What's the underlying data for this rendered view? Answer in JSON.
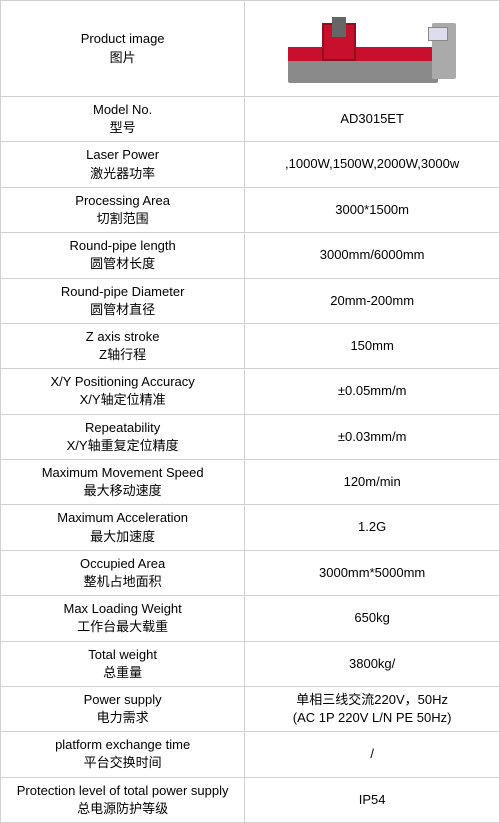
{
  "table": {
    "header": {
      "label_en": "Product image",
      "label_cn": "图片"
    },
    "rows": [
      {
        "label_en": "Model No.",
        "label_cn": "型号",
        "value": "AD3015ET"
      },
      {
        "label_en": "Laser Power",
        "label_cn": "激光器功率",
        "value": ",1000W,1500W,2000W,3000w"
      },
      {
        "label_en": "Processing Area",
        "label_cn": "切割范围",
        "value": "3000*1500m"
      },
      {
        "label_en": "Round-pipe length",
        "label_cn": "圆管材长度",
        "value": "3000mm/6000mm"
      },
      {
        "label_en": "Round-pipe Diameter",
        "label_cn": "圆管材直径",
        "value": "20mm-200mm"
      },
      {
        "label_en": "Z axis stroke",
        "label_cn": "Z轴行程",
        "value": "150mm"
      },
      {
        "label_en": "X/Y Positioning Accuracy",
        "label_cn": "X/Y轴定位精准",
        "value": "±0.05mm/m"
      },
      {
        "label_en": "Repeatability",
        "label_cn": "X/Y轴重复定位精度",
        "value": "±0.03mm/m"
      },
      {
        "label_en": "Maximum Movement Speed",
        "label_cn": "最大移动速度",
        "value": "120m/min"
      },
      {
        "label_en": "Maximum Acceleration",
        "label_cn": "最大加速度",
        "value": "1.2G"
      },
      {
        "label_en": "Occupied Area",
        "label_cn": "整机占地面积",
        "value": "3000mm*5000mm"
      },
      {
        "label_en": "Max Loading Weight",
        "label_cn": "工作台最大载重",
        "value": "650kg"
      },
      {
        "label_en": "Total weight",
        "label_cn": "总重量",
        "value": "3800kg/"
      },
      {
        "label_en": "Power supply",
        "label_cn": "电力需求",
        "value": "单相三线交流220V，50Hz\n(AC 1P 220V L/N PE 50Hz)"
      },
      {
        "label_en": "platform exchange  time",
        "label_cn": "平台交换时间",
        "value": "/"
      },
      {
        "label_en": "Protection level of total power supply",
        "label_cn": "总电源防护等级",
        "value": "IP54"
      }
    ]
  },
  "colors": {
    "border": "#d0d0d0",
    "text": "#000000",
    "machine_red": "#c8102e",
    "machine_gray": "#8a8a8a"
  },
  "typography": {
    "font_family": "Arial, Microsoft YaHei, sans-serif",
    "font_size_pt": 10
  }
}
